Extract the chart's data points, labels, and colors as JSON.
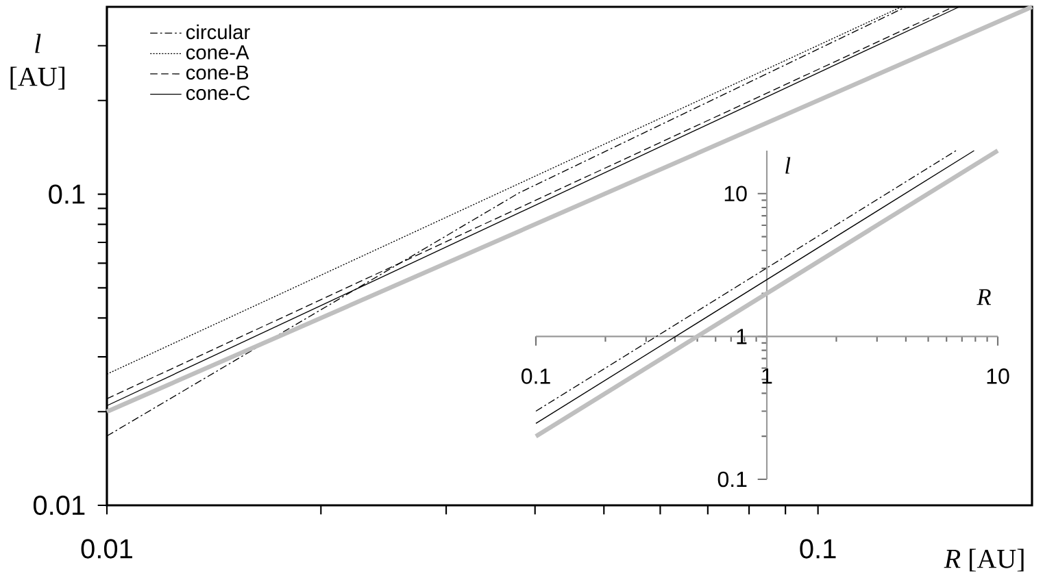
{
  "chart_data": [
    {
      "type": "line",
      "xlabel": "*R* [AU]",
      "ylabel": "*l* [AU]",
      "log": "xy",
      "xlim": [
        0.01,
        0.2
      ],
      "ylim": [
        0.01,
        0.4
      ],
      "xticks": [
        0.01,
        {
          "value": 0.02,
          "label": null
        },
        {
          "value": 0.03,
          "label": null
        },
        {
          "value": 0.04,
          "label": null
        },
        {
          "value": 0.05,
          "label": null
        },
        {
          "value": 0.06,
          "label": null
        },
        {
          "value": 0.07,
          "label": null
        },
        {
          "value": 0.08,
          "label": null
        },
        {
          "value": 0.09,
          "label": null
        },
        0.1
      ],
      "yticks": [
        0.01,
        {
          "value": 0.02,
          "label": null
        },
        {
          "value": 0.03,
          "label": null
        },
        {
          "value": 0.04,
          "label": null
        },
        {
          "value": 0.05,
          "label": null
        },
        {
          "value": 0.06,
          "label": null
        },
        {
          "value": 0.07,
          "label": null
        },
        {
          "value": 0.08,
          "label": null
        },
        {
          "value": 0.09,
          "label": null
        },
        0.1,
        {
          "value": 0.2,
          "label": null
        },
        {
          "value": 0.3,
          "label": null
        }
      ],
      "legend": "top left",
      "grid": false,
      "marker": "none",
      "series": [
        {
          "name": "circular",
          "color": "#000000",
          "line_style": "dashdot",
          "x": [
            0.01,
            0.038,
            0.133
          ],
          "values": [
            0.0167,
            0.101,
            0.4
          ]
        },
        {
          "name": "cone-A",
          "color": "#000000",
          "line_style": "dotted",
          "x": [
            0.01,
            0.131
          ],
          "values": [
            0.0264,
            0.4
          ]
        },
        {
          "name": "cone-B",
          "color": "#000000",
          "line_style": "dashed",
          "x": [
            0.01,
            0.155
          ],
          "values": [
            0.022,
            0.4
          ]
        },
        {
          "name": "cone-C",
          "color": "#000000",
          "line_style": "solid",
          "x": [
            0.01,
            0.158
          ],
          "values": [
            0.0209,
            0.4
          ]
        },
        {
          "color": "#bfbfbf",
          "line_style": "solid",
          "x": [
            0.01,
            0.2
          ],
          "values": [
            0.02,
            0.4
          ]
        }
      ]
    },
    {
      "type": "line",
      "xlabel": "*R*",
      "ylabel": "*l*",
      "log": "xy",
      "xlim": [
        0.1,
        10
      ],
      "ylim": [
        0.1,
        20
      ],
      "xticks": [
        0.1,
        1,
        10
      ],
      "yticks": [
        0.1,
        1,
        10
      ],
      "legend": false,
      "grid": false,
      "marker": "none",
      "series": [
        {
          "color": "#000000",
          "line_style": "dashdot",
          "x": [
            0.1,
            6.6
          ],
          "values": [
            0.3,
            20
          ]
        },
        {
          "color": "#000000",
          "line_style": "solid",
          "x": [
            0.1,
            7.9
          ],
          "values": [
            0.246,
            20
          ]
        },
        {
          "color": "#bfbfbf",
          "line_style": "solid",
          "x": [
            0.1,
            10
          ],
          "values": [
            0.2,
            20
          ]
        }
      ]
    }
  ]
}
